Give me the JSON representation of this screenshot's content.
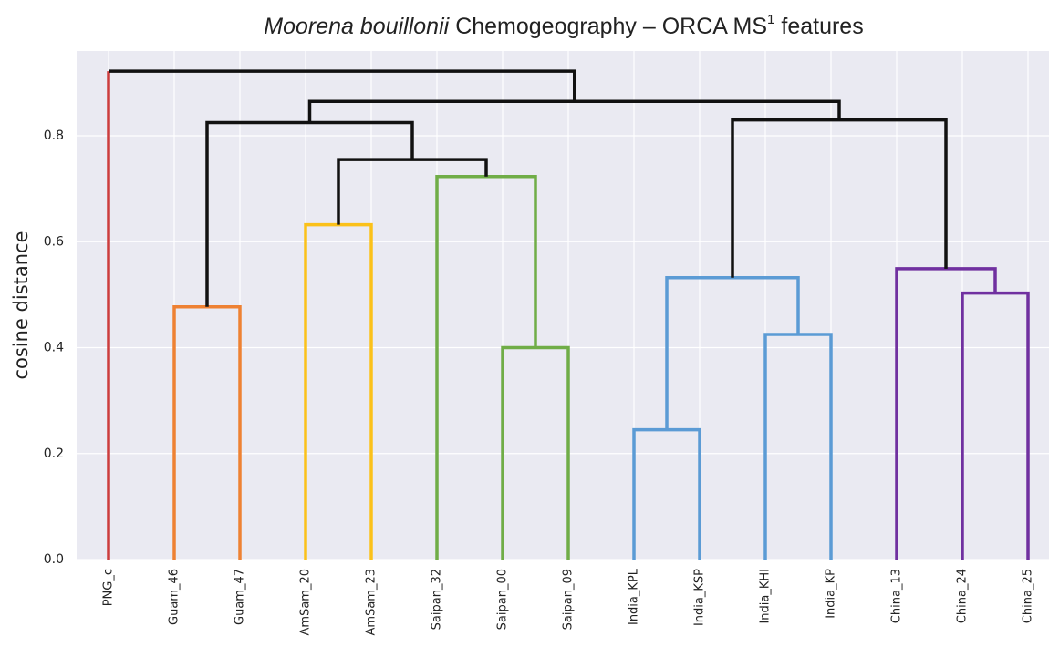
{
  "chart_data": {
    "type": "dendrogram",
    "title": [
      "Moorena bouillonii",
      "Chemogeography – ORCA MS",
      "1",
      "features"
    ],
    "title_styles": [
      "italic",
      "normal",
      "superscript",
      "normal"
    ],
    "y_label": "cosine distance",
    "ylim": [
      0,
      0.96
    ],
    "yticks": [
      {
        "value": 0,
        "label": "0.0"
      },
      0.2,
      0.4,
      0.6,
      0.8
    ],
    "grid": true,
    "leaves": [
      "PNG_c",
      "Guam_46",
      "Guam_47",
      "AmSam_20",
      "AmSam_23",
      "Saipan_32",
      "Saipan_00",
      "Saipan_09",
      "India_KPL",
      "India_KSP",
      "India_KHI",
      "India_KP",
      "China_13",
      "China_24",
      "China_25"
    ],
    "merges": [
      {
        "children": [
          1,
          2
        ],
        "height": 0.477,
        "color": "#ee8133"
      },
      {
        "children": [
          3,
          4
        ],
        "height": 0.632,
        "color": "#fbc11a"
      },
      {
        "children": [
          6,
          7
        ],
        "height": 0.4,
        "color": "#70ad47"
      },
      {
        "children": [
          5,
          17
        ],
        "height": 0.723,
        "color": "#70ad47"
      },
      {
        "children": [
          16,
          18
        ],
        "height": 0.755,
        "color": "#111111"
      },
      {
        "children": [
          15,
          19
        ],
        "height": 0.825,
        "color": "#111111"
      },
      {
        "children": [
          8,
          9
        ],
        "height": 0.245,
        "color": "#5b9bd5"
      },
      {
        "children": [
          10,
          11
        ],
        "height": 0.425,
        "color": "#5b9bd5"
      },
      {
        "children": [
          21,
          22
        ],
        "height": 0.532,
        "color": "#5b9bd5"
      },
      {
        "children": [
          13,
          14
        ],
        "height": 0.503,
        "color": "#7030a0"
      },
      {
        "children": [
          12,
          24
        ],
        "height": 0.549,
        "color": "#7030a0"
      },
      {
        "children": [
          23,
          25
        ],
        "height": 0.83,
        "color": "#111111"
      },
      {
        "children": [
          20,
          26
        ],
        "height": 0.865,
        "color": "#111111"
      },
      {
        "children": [
          0,
          27
        ],
        "height": 0.922,
        "color": "#111111",
        "left_color": "#cc3d3d"
      }
    ]
  }
}
